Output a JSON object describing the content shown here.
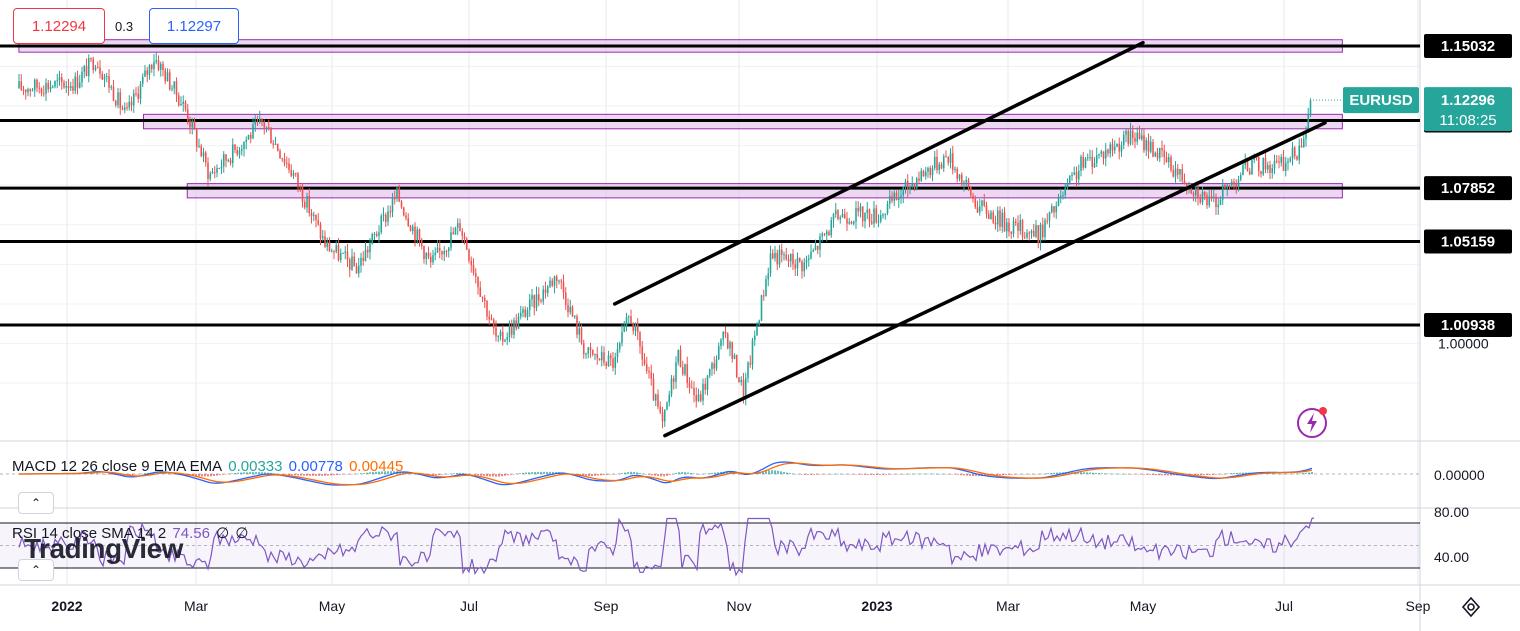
{
  "header": {
    "bid": "1.12294",
    "spread": "0.3",
    "ask": "1.12297"
  },
  "symbol": {
    "ticker": "EURUSD",
    "price": "1.12296",
    "countdown": "11:08:25",
    "color": "#26a69a"
  },
  "indicators": {
    "macd": {
      "label": "MACD 12 26 close 9 EMA EMA",
      "histogram": "0.00333",
      "macd": "0.00778",
      "signal": "0.00445",
      "hist_color": "#26a69a",
      "macd_color": "#2962ff",
      "signal_color": "#ff6d00",
      "axis_label": "0.00000"
    },
    "rsi": {
      "label": "RSI 14 close SMA 14 2",
      "value": "74.56",
      "extra1": "∅",
      "extra2": "∅",
      "color": "#7e57c2",
      "axis_high": "80.00",
      "axis_low": "40.00"
    }
  },
  "watermark": "TradingView",
  "icons": {
    "collapse": "chevron-up-icon",
    "settings": "settings-icon",
    "alert": "lightning-icon"
  },
  "chart_data": {
    "type": "candlestick",
    "symbol": "EURUSD",
    "x_tick_labels": [
      "2022",
      "Mar",
      "May",
      "Jul",
      "Sep",
      "Nov",
      "2023",
      "Mar",
      "May",
      "Jul",
      "Sep"
    ],
    "y_axis_labels": [
      "1.00000"
    ],
    "horizontal_levels": [
      {
        "value": 1.15032,
        "label": "1.15032"
      },
      {
        "value": 1.11269,
        "label": "1.11269"
      },
      {
        "value": 1.07852,
        "label": "1.07852"
      },
      {
        "value": 1.05159,
        "label": "1.05159"
      },
      {
        "value": 1.00938,
        "label": "1.00938"
      }
    ],
    "zones": [
      {
        "from": 1.1472,
        "to": 1.1535,
        "start": "2021-12-10",
        "end": "2023-07-28"
      },
      {
        "from": 1.1085,
        "to": 1.1158,
        "start": "2022-02-05",
        "end": "2023-07-28"
      },
      {
        "from": 1.0736,
        "to": 1.0808,
        "start": "2022-02-25",
        "end": "2023-07-28"
      }
    ],
    "trendlines": [
      {
        "name": "channel-top",
        "from": [
          "2022-09-05",
          1.02
        ],
        "to": [
          "2023-05-01",
          1.152
        ]
      },
      {
        "name": "channel-bottom",
        "from": [
          "2022-09-28",
          0.9535
        ],
        "to": [
          "2023-07-20",
          1.1115
        ]
      }
    ],
    "close_path": [
      [
        "2021-12-10",
        1.129
      ],
      [
        "2022-01-05",
        1.132
      ],
      [
        "2022-01-14",
        1.144
      ],
      [
        "2022-01-28",
        1.115
      ],
      [
        "2022-02-10",
        1.145
      ],
      [
        "2022-02-24",
        1.119
      ],
      [
        "2022-03-07",
        1.085
      ],
      [
        "2022-03-31",
        1.112
      ],
      [
        "2022-04-14",
        1.085
      ],
      [
        "2022-04-28",
        1.05
      ],
      [
        "2022-05-12",
        1.038
      ],
      [
        "2022-05-30",
        1.075
      ],
      [
        "2022-06-14",
        1.04
      ],
      [
        "2022-06-27",
        1.06
      ],
      [
        "2022-07-14",
        1.0
      ],
      [
        "2022-08-10",
        1.035
      ],
      [
        "2022-08-23",
        0.995
      ],
      [
        "2022-09-05",
        0.99
      ],
      [
        "2022-09-12",
        1.015
      ],
      [
        "2022-09-27",
        0.958
      ],
      [
        "2022-10-04",
        0.995
      ],
      [
        "2022-10-13",
        0.97
      ],
      [
        "2022-10-26",
        1.005
      ],
      [
        "2022-11-03",
        0.975
      ],
      [
        "2022-11-15",
        1.045
      ],
      [
        "2022-11-30",
        1.04
      ],
      [
        "2022-12-15",
        1.065
      ],
      [
        "2023-01-02",
        1.065
      ],
      [
        "2023-01-20",
        1.085
      ],
      [
        "2023-02-02",
        1.095
      ],
      [
        "2023-02-15",
        1.07
      ],
      [
        "2023-03-01",
        1.06
      ],
      [
        "2023-03-15",
        1.055
      ],
      [
        "2023-04-03",
        1.09
      ],
      [
        "2023-04-26",
        1.105
      ],
      [
        "2023-05-04",
        1.1
      ],
      [
        "2023-05-31",
        1.07
      ],
      [
        "2023-06-15",
        1.09
      ],
      [
        "2023-06-30",
        1.09
      ],
      [
        "2023-07-07",
        1.097
      ],
      [
        "2023-07-12",
        1.113
      ],
      [
        "2023-07-14",
        1.123
      ]
    ],
    "macd": {
      "last_macd": 0.00778,
      "last_signal": 0.00445,
      "last_histogram": 0.00333
    },
    "rsi": {
      "last": 74.56,
      "upper_band": 70,
      "lower_band": 30
    }
  }
}
